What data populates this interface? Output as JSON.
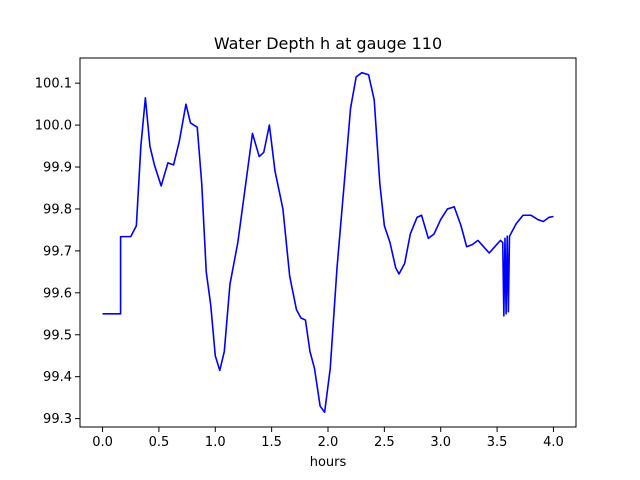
{
  "chart_data": {
    "type": "line",
    "title": "Water Depth h at gauge 110",
    "xlabel": "hours",
    "ylabel": "",
    "xlim": [
      -0.2,
      4.2
    ],
    "ylim": [
      99.28,
      100.16
    ],
    "x_ticks": [
      0.0,
      0.5,
      1.0,
      1.5,
      2.0,
      2.5,
      3.0,
      3.5,
      4.0
    ],
    "x_tick_labels": [
      "0.0",
      "0.5",
      "1.0",
      "1.5",
      "2.0",
      "2.5",
      "3.0",
      "3.5",
      "4.0"
    ],
    "y_ticks": [
      99.3,
      99.4,
      99.5,
      99.6,
      99.7,
      99.8,
      99.9,
      100.0,
      100.1
    ],
    "y_tick_labels": [
      "99.3",
      "99.4",
      "99.5",
      "99.6",
      "99.7",
      "99.8",
      "99.9",
      "100.0",
      "100.1"
    ],
    "grid": false,
    "legend": "none",
    "series": [
      {
        "color": "#0000ff",
        "points": [
          [
            0.0,
            99.55
          ],
          [
            0.16,
            99.55
          ],
          [
            0.16,
            99.734
          ],
          [
            0.25,
            99.734
          ],
          [
            0.3,
            99.76
          ],
          [
            0.34,
            99.95
          ],
          [
            0.38,
            100.065
          ],
          [
            0.42,
            99.95
          ],
          [
            0.46,
            99.905
          ],
          [
            0.52,
            99.855
          ],
          [
            0.58,
            99.91
          ],
          [
            0.63,
            99.905
          ],
          [
            0.68,
            99.96
          ],
          [
            0.74,
            100.05
          ],
          [
            0.78,
            100.005
          ],
          [
            0.84,
            99.995
          ],
          [
            0.88,
            99.86
          ],
          [
            0.92,
            99.65
          ],
          [
            0.96,
            99.57
          ],
          [
            1.0,
            99.45
          ],
          [
            1.04,
            99.415
          ],
          [
            1.08,
            99.46
          ],
          [
            1.13,
            99.62
          ],
          [
            1.2,
            99.72
          ],
          [
            1.27,
            99.86
          ],
          [
            1.33,
            99.98
          ],
          [
            1.39,
            99.925
          ],
          [
            1.43,
            99.935
          ],
          [
            1.48,
            100.0
          ],
          [
            1.53,
            99.89
          ],
          [
            1.6,
            99.8
          ],
          [
            1.66,
            99.64
          ],
          [
            1.72,
            99.56
          ],
          [
            1.76,
            99.54
          ],
          [
            1.8,
            99.535
          ],
          [
            1.84,
            99.46
          ],
          [
            1.88,
            99.42
          ],
          [
            1.93,
            99.33
          ],
          [
            1.97,
            99.315
          ],
          [
            2.02,
            99.42
          ],
          [
            2.08,
            99.66
          ],
          [
            2.15,
            99.88
          ],
          [
            2.2,
            100.04
          ],
          [
            2.25,
            100.115
          ],
          [
            2.3,
            100.125
          ],
          [
            2.36,
            100.12
          ],
          [
            2.41,
            100.06
          ],
          [
            2.46,
            99.86
          ],
          [
            2.5,
            99.76
          ],
          [
            2.55,
            99.72
          ],
          [
            2.6,
            99.66
          ],
          [
            2.63,
            99.645
          ],
          [
            2.68,
            99.67
          ],
          [
            2.73,
            99.74
          ],
          [
            2.79,
            99.78
          ],
          [
            2.83,
            99.785
          ],
          [
            2.89,
            99.73
          ],
          [
            2.94,
            99.74
          ],
          [
            3.0,
            99.775
          ],
          [
            3.06,
            99.8
          ],
          [
            3.12,
            99.805
          ],
          [
            3.18,
            99.76
          ],
          [
            3.23,
            99.71
          ],
          [
            3.28,
            99.715
          ],
          [
            3.33,
            99.725
          ],
          [
            3.38,
            99.71
          ],
          [
            3.43,
            99.695
          ],
          [
            3.48,
            99.71
          ],
          [
            3.53,
            99.725
          ],
          [
            3.55,
            99.72
          ],
          [
            3.56,
            99.545
          ],
          [
            3.57,
            99.73
          ],
          [
            3.58,
            99.55
          ],
          [
            3.59,
            99.735
          ],
          [
            3.6,
            99.555
          ],
          [
            3.61,
            99.735
          ],
          [
            3.67,
            99.765
          ],
          [
            3.73,
            99.785
          ],
          [
            3.8,
            99.785
          ],
          [
            3.86,
            99.775
          ],
          [
            3.91,
            99.77
          ],
          [
            3.96,
            99.78
          ],
          [
            4.0,
            99.782
          ]
        ]
      }
    ]
  }
}
